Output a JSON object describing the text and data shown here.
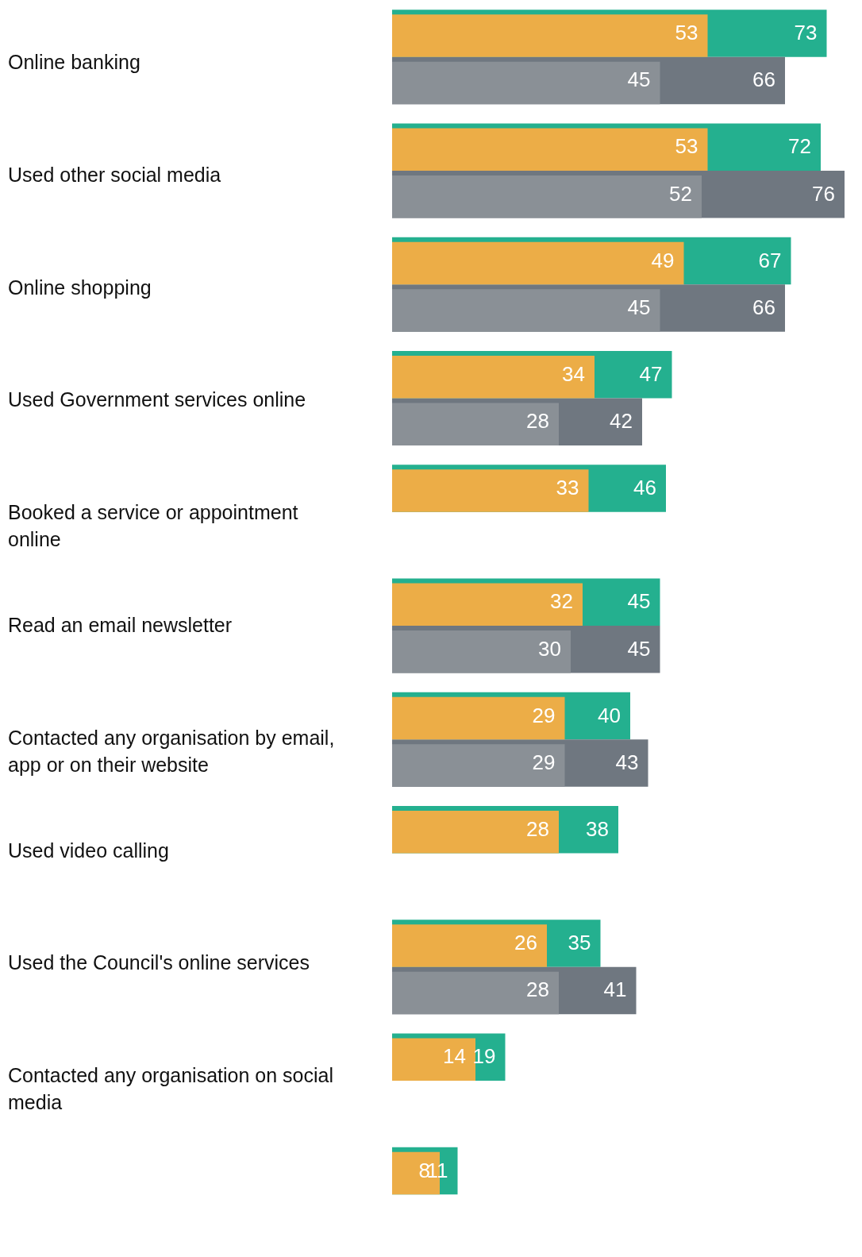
{
  "chart_data": {
    "type": "bar",
    "orientation": "horizontal",
    "data_labels": true,
    "categories": [
      "Online banking",
      "Used other social media",
      "Online shopping",
      "Used Government services online",
      "Booked a service or appointment online",
      "Read an email newsletter",
      "Contacted any organisation by email, app or on their website",
      "Used video calling",
      "Used the Council's online services",
      "Contacted any organisation on social media",
      null
    ],
    "series": [
      {
        "color": "#ecad47",
        "values": [
          53,
          53,
          49,
          34,
          33,
          32,
          29,
          28,
          26,
          14,
          8
        ]
      },
      {
        "color": "#24b08f",
        "values": [
          73,
          72,
          67,
          47,
          46,
          45,
          40,
          38,
          35,
          19,
          11
        ]
      },
      {
        "color": "#8a9096",
        "values": [
          45,
          52,
          45,
          28,
          null,
          30,
          29,
          null,
          28,
          null,
          null
        ]
      },
      {
        "color": "#6f7780",
        "values": [
          66,
          76,
          66,
          42,
          null,
          45,
          43,
          null,
          41,
          null,
          null
        ]
      }
    ]
  }
}
